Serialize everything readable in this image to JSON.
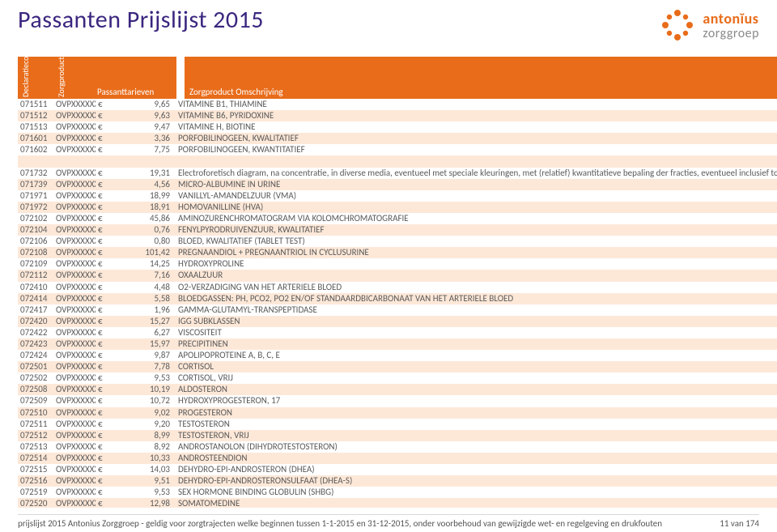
{
  "title": "Passanten Prijslijst 2015",
  "brand": {
    "name": "antonĭus",
    "sub": "zorggroep"
  },
  "colors": {
    "header_purple": "#3b267f",
    "brand_orange": "#e86c1a",
    "row_alt_bg": "#fde8d8",
    "page_bg": "#ffffff"
  },
  "table": {
    "headers": {
      "declaratiecode": "Declaratiecode",
      "zorgproduct": "Zorgproduct",
      "tarief": "Passanttarieven",
      "omschrijving": "Zorgproduct Omschrijving"
    },
    "currency_symbol": "€",
    "rows": [
      {
        "decl": "071511",
        "prod": "OVPXXXXXX",
        "price": "9,65",
        "desc": "VITAMINE B1, THIAMINE"
      },
      {
        "decl": "071512",
        "prod": "OVPXXXXXX",
        "price": "9,63",
        "desc": "VITAMINE B6, PYRIDOXINE"
      },
      {
        "decl": "071513",
        "prod": "OVPXXXXXX",
        "price": "9,47",
        "desc": "VITAMINE H, BIOTINE"
      },
      {
        "decl": "071601",
        "prod": "OVPXXXXXX",
        "price": "3,36",
        "desc": "PORFOBILINOGEEN, KWALITATIEF"
      },
      {
        "decl": "071602",
        "prod": "OVPXXXXXX",
        "price": "7,75",
        "desc": "PORFOBILINOGEEN, KWANTITATIEF"
      },
      {
        "spacer": true
      },
      {
        "decl": "071732",
        "prod": "OVPXXXXXX",
        "price": "19,31",
        "desc": "Electroforetisch diagram, na concentratie, in diverse media, eventueel met speciale kleuringen, met (relatief) kwantitatieve bepaling der fracties, eventueel inclusief totaal eiwitbepal"
      },
      {
        "decl": "071739",
        "prod": "OVPXXXXXX",
        "price": "4,56",
        "desc": "MICRO-ALBUMINE IN URINE"
      },
      {
        "decl": "071971",
        "prod": "OVPXXXXXX",
        "price": "18,99",
        "desc": "VANILLYL-AMANDELZUUR (VMA)"
      },
      {
        "decl": "071972",
        "prod": "OVPXXXXXX",
        "price": "18,91",
        "desc": "HOMOVANILLINE (HVA)"
      },
      {
        "decl": "072102",
        "prod": "OVPXXXXXX",
        "price": "45,86",
        "desc": "AMINOZURENCHROMATOGRAM VIA KOLOMCHROMATOGRAFIE"
      },
      {
        "decl": "072104",
        "prod": "OVPXXXXXX",
        "price": "0,76",
        "desc": "FENYLPYRODRUIVENZUUR, KWALITATIEF"
      },
      {
        "decl": "072106",
        "prod": "OVPXXXXXX",
        "price": "0,80",
        "desc": "BLOED, KWALITATIEF (TABLET TEST)"
      },
      {
        "decl": "072108",
        "prod": "OVPXXXXXX",
        "price": "101,42",
        "desc": "PREGNAANDIOL + PREGNAANTRIOL IN CYCLUSURINE"
      },
      {
        "decl": "072109",
        "prod": "OVPXXXXXX",
        "price": "14,25",
        "desc": "HYDROXYPROLINE"
      },
      {
        "decl": "072112",
        "prod": "OVPXXXXXX",
        "price": "7,16",
        "desc": "OXAALZUUR"
      },
      {
        "decl": "072410",
        "prod": "OVPXXXXXX",
        "price": "4,48",
        "desc": "O2-VERZADIGING VAN HET ARTERIELE BLOED"
      },
      {
        "decl": "072414",
        "prod": "OVPXXXXXX",
        "price": "5,58",
        "desc": "BLOEDGASSEN: PH, PCO2, PO2 EN/OF STANDAARDBICARBONAAT VAN HET ARTERIELE BLOED"
      },
      {
        "decl": "072417",
        "prod": "OVPXXXXXX",
        "price": "1,96",
        "desc": "GAMMA-GLUTAMYL-TRANSPEPTIDASE"
      },
      {
        "decl": "072420",
        "prod": "OVPXXXXXX",
        "price": "15,27",
        "desc": "IGG SUBKLASSEN"
      },
      {
        "decl": "072422",
        "prod": "OVPXXXXXX",
        "price": "6,27",
        "desc": "VISCOSITEIT"
      },
      {
        "decl": "072423",
        "prod": "OVPXXXXXX",
        "price": "15,97",
        "desc": "PRECIPITINEN"
      },
      {
        "decl": "072424",
        "prod": "OVPXXXXXX",
        "price": "9,87",
        "desc": "APOLIPOPROTEINE A, B, C, E"
      },
      {
        "decl": "072501",
        "prod": "OVPXXXXXX",
        "price": "7,78",
        "desc": "CORTISOL"
      },
      {
        "decl": "072502",
        "prod": "OVPXXXXXX",
        "price": "9,53",
        "desc": "CORTISOL, VRIJ"
      },
      {
        "decl": "072508",
        "prod": "OVPXXXXXX",
        "price": "10,19",
        "desc": "ALDOSTERON"
      },
      {
        "decl": "072509",
        "prod": "OVPXXXXXX",
        "price": "10,72",
        "desc": "HYDROXYPROGESTERON, 17"
      },
      {
        "decl": "072510",
        "prod": "OVPXXXXXX",
        "price": "9,02",
        "desc": "PROGESTERON"
      },
      {
        "decl": "072511",
        "prod": "OVPXXXXXX",
        "price": "9,20",
        "desc": "TESTOSTERON"
      },
      {
        "decl": "072512",
        "prod": "OVPXXXXXX",
        "price": "8,99",
        "desc": "TESTOSTERON, VRIJ"
      },
      {
        "decl": "072513",
        "prod": "OVPXXXXXX",
        "price": "8,92",
        "desc": "ANDROSTANOLON (DIHYDROTESTOSTERON)"
      },
      {
        "decl": "072514",
        "prod": "OVPXXXXXX",
        "price": "10,33",
        "desc": "ANDROSTEENDION"
      },
      {
        "decl": "072515",
        "prod": "OVPXXXXXX",
        "price": "14,03",
        "desc": "DEHYDRO-EPI-ANDROSTERON (DHEA)"
      },
      {
        "decl": "072516",
        "prod": "OVPXXXXXX",
        "price": "9,51",
        "desc": "DEHYDRO-EPI-ANDROSTERONSULFAAT (DHEA-S)"
      },
      {
        "decl": "072519",
        "prod": "OVPXXXXXX",
        "price": "9,53",
        "desc": "SEX HORMONE BINDING GLOBULIN (SHBG)"
      },
      {
        "decl": "072520",
        "prod": "OVPXXXXXX",
        "price": "12,98",
        "desc": "SOMATOMEDINE"
      }
    ]
  },
  "footer": {
    "left": "prijslijst 2015 Antonius Zorggroep - geldig voor zorgtrajecten welke beginnen tussen 1-1-2015 en 31-12-2015, onder voorbehoud van gewijzigde wet- en regelgeving en drukfouten",
    "right": "11 van 174"
  }
}
